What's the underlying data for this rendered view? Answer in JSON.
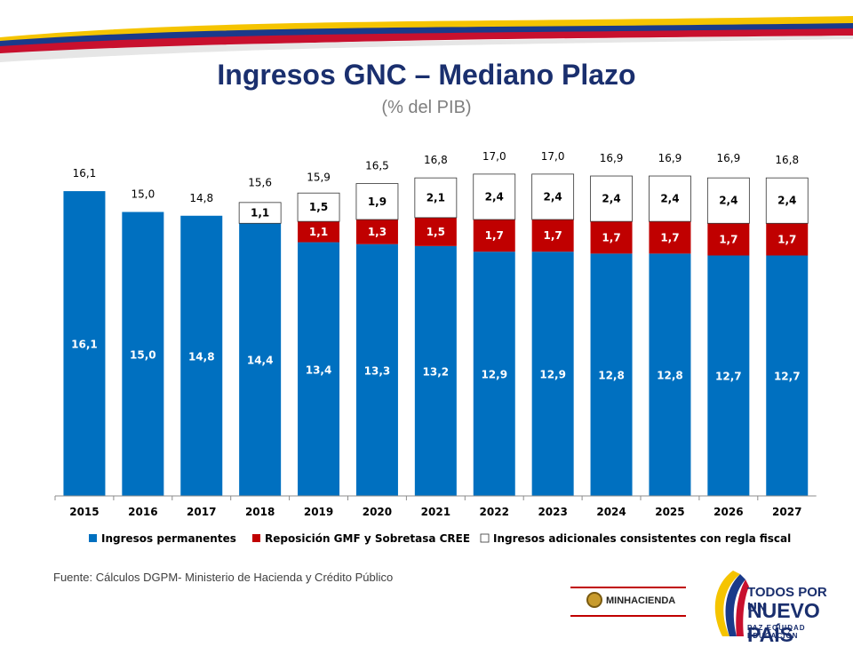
{
  "header": {
    "title": "Ingresos GNC – Mediano Plazo",
    "subtitle": "(% del PIB)"
  },
  "chart_data": {
    "type": "bar",
    "stacked": true,
    "categories": [
      "2015",
      "2016",
      "2017",
      "2018",
      "2019",
      "2020",
      "2021",
      "2022",
      "2023",
      "2024",
      "2025",
      "2026",
      "2027"
    ],
    "series": [
      {
        "name": "Ingresos permanentes",
        "color": "#0070c0",
        "values": [
          16.1,
          15.0,
          14.8,
          14.4,
          13.4,
          13.3,
          13.2,
          12.9,
          12.9,
          12.8,
          12.8,
          12.7,
          12.7
        ],
        "labels": [
          "16,1",
          "15,0",
          "14,8",
          "14,4",
          "13,4",
          "13,3",
          "13,2",
          "12,9",
          "12,9",
          "12,8",
          "12,8",
          "12,7",
          "12,7"
        ]
      },
      {
        "name": "Reposición GMF y Sobretasa CREE",
        "color": "#c00000",
        "values": [
          null,
          null,
          null,
          null,
          1.1,
          1.3,
          1.5,
          1.7,
          1.7,
          1.7,
          1.7,
          1.7,
          1.7
        ],
        "labels": [
          "",
          "",
          "",
          "",
          "1,1",
          "1,3",
          "1,5",
          "1,7",
          "1,7",
          "1,7",
          "1,7",
          "1,7",
          "1,7"
        ]
      },
      {
        "name": "Ingresos adicionales consistentes con regla fiscal",
        "color": "#ffffff",
        "values": [
          null,
          null,
          null,
          1.1,
          1.5,
          1.9,
          2.1,
          2.4,
          2.4,
          2.4,
          2.4,
          2.4,
          2.4
        ],
        "labels": [
          "",
          "",
          "",
          "1,1",
          "1,5",
          "1,9",
          "2,1",
          "2,4",
          "2,4",
          "2,4",
          "2,4",
          "2,4",
          "2,4"
        ]
      }
    ],
    "totals": [
      16.1,
      15.0,
      14.8,
      15.6,
      15.9,
      16.5,
      16.8,
      17.0,
      17.0,
      16.9,
      16.9,
      16.9,
      16.8
    ],
    "total_labels": [
      "16,1",
      "15,0",
      "14,8",
      "15,6",
      "15,9",
      "16,5",
      "16,8",
      "17,0",
      "17,0",
      "16,9",
      "16,9",
      "16,9",
      "16,8"
    ],
    "legend": {
      "position": "bottom",
      "labels": [
        "Ingresos permanentes",
        "Reposición GMF y Sobretasa CREE",
        "Ingresos adicionales consistentes con regla fiscal"
      ]
    },
    "grid": false
  },
  "footer": {
    "source": "Fuente: Cálculos DGPM- Ministerio de Hacienda y Crédito Público",
    "logo_min": "MINHACIENDA",
    "logo_line1": "TODOS POR UN",
    "logo_line2": "NUEVO PAÍS",
    "logo_line3": "PAZ  EQUIDAD  EDUCACIÓN"
  }
}
